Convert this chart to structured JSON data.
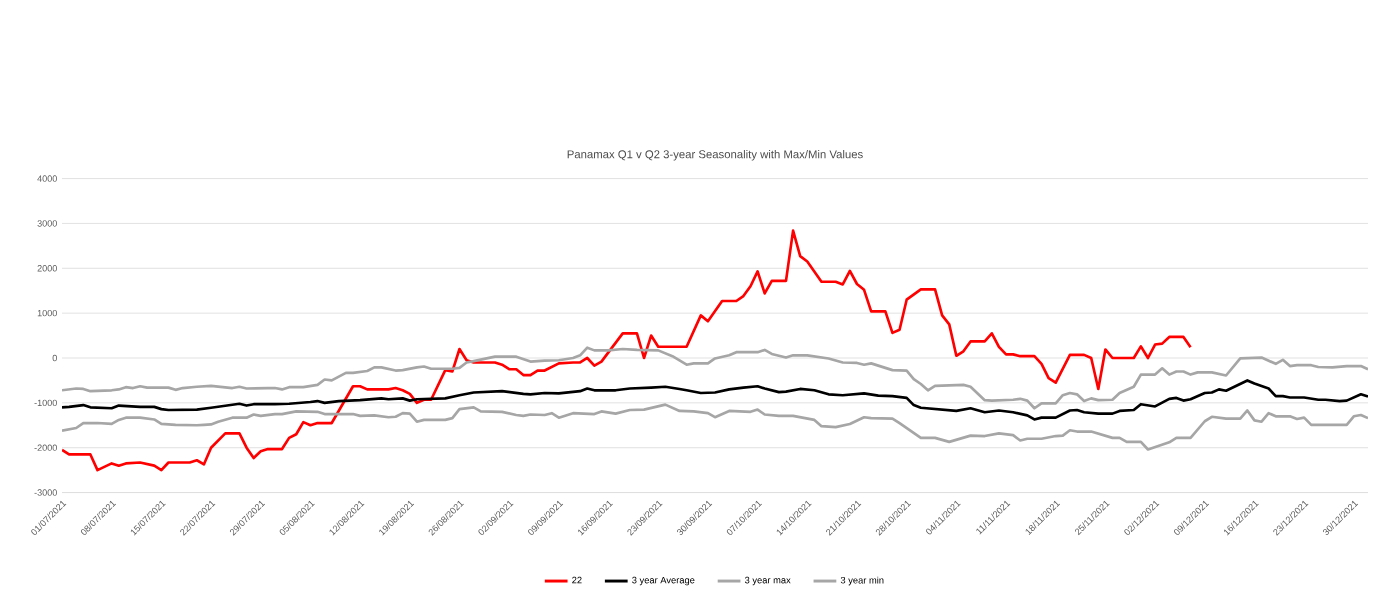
{
  "chart_data": {
    "type": "line",
    "title": "Panamax Q1 v Q2 3-year Seasonality with Max/Min Values",
    "xlim": [
      "2021-07-01",
      "2022-01-01"
    ],
    "ylim": [
      -3000,
      4000
    ],
    "yticks": [
      -3000,
      -2000,
      -1000,
      0,
      1000,
      2000,
      3000,
      4000
    ],
    "xticks": [
      {
        "value": "2021-07-01",
        "label": "01/07/2021"
      },
      {
        "value": "2021-07-08",
        "label": "08/07/2021"
      },
      {
        "value": "2021-07-15",
        "label": "15/07/2021"
      },
      {
        "value": "2021-07-22",
        "label": "22/07/2021"
      },
      {
        "value": "2021-07-29",
        "label": "29/07/2021"
      },
      {
        "value": "2021-08-05",
        "label": "05/08/2021"
      },
      {
        "value": "2021-08-12",
        "label": "12/08/2021"
      },
      {
        "value": "2021-08-19",
        "label": "19/08/2021"
      },
      {
        "value": "2021-08-26",
        "label": "26/08/2021"
      },
      {
        "value": "2021-09-02",
        "label": "02/09/2021"
      },
      {
        "value": "2021-09-09",
        "label": "09/09/2021"
      },
      {
        "value": "2021-09-16",
        "label": "16/09/2021"
      },
      {
        "value": "2021-09-23",
        "label": "23/09/2021"
      },
      {
        "value": "2021-09-30",
        "label": "30/09/2021"
      },
      {
        "value": "2021-10-07",
        "label": "07/10/2021"
      },
      {
        "value": "2021-10-14",
        "label": "14/10/2021"
      },
      {
        "value": "2021-10-21",
        "label": "21/10/2021"
      },
      {
        "value": "2021-10-28",
        "label": "28/10/2021"
      },
      {
        "value": "2021-11-04",
        "label": "04/11/2021"
      },
      {
        "value": "2021-11-11",
        "label": "11/11/2021"
      },
      {
        "value": "2021-11-18",
        "label": "18/11/2021"
      },
      {
        "value": "2021-11-25",
        "label": "25/11/2021"
      },
      {
        "value": "2021-12-02",
        "label": "02/12/2021"
      },
      {
        "value": "2021-12-09",
        "label": "09/12/2021"
      },
      {
        "value": "2021-12-16",
        "label": "16/12/2021"
      },
      {
        "value": "2021-12-23",
        "label": "23/12/2021"
      },
      {
        "value": "2021-12-30",
        "label": "30/12/2021"
      }
    ],
    "grid": "y",
    "legend": "bottom",
    "series": [
      {
        "name": "22",
        "color": "#ff0000",
        "x": [
          "2021-07-01",
          "2021-07-02",
          "2021-07-05",
          "2021-07-06",
          "2021-07-08",
          "2021-07-09",
          "2021-07-10",
          "2021-07-12",
          "2021-07-14",
          "2021-07-15",
          "2021-07-16",
          "2021-07-19",
          "2021-07-20",
          "2021-07-21",
          "2021-07-22",
          "2021-07-24",
          "2021-07-26",
          "2021-07-27",
          "2021-07-28",
          "2021-07-29",
          "2021-07-30",
          "2021-08-01",
          "2021-08-02",
          "2021-08-03",
          "2021-08-04",
          "2021-08-05",
          "2021-08-06",
          "2021-08-08",
          "2021-08-11",
          "2021-08-12",
          "2021-08-13",
          "2021-08-16",
          "2021-08-17",
          "2021-08-18",
          "2021-08-19",
          "2021-08-20",
          "2021-08-21",
          "2021-08-22",
          "2021-08-24",
          "2021-08-25",
          "2021-08-26",
          "2021-08-27",
          "2021-08-28",
          "2021-08-31",
          "2021-09-01",
          "2021-09-02",
          "2021-09-03",
          "2021-09-04",
          "2021-09-05",
          "2021-09-06",
          "2021-09-07",
          "2021-09-09",
          "2021-09-11",
          "2021-09-12",
          "2021-09-13",
          "2021-09-14",
          "2021-09-15",
          "2021-09-18",
          "2021-09-20",
          "2021-09-21",
          "2021-09-22",
          "2021-09-23",
          "2021-09-24",
          "2021-09-27",
          "2021-09-29",
          "2021-09-30",
          "2021-10-02",
          "2021-10-04",
          "2021-10-05",
          "2021-10-06",
          "2021-10-07",
          "2021-10-08",
          "2021-10-09",
          "2021-10-11",
          "2021-10-12",
          "2021-10-13",
          "2021-10-14",
          "2021-10-16",
          "2021-10-18",
          "2021-10-19",
          "2021-10-20",
          "2021-10-21",
          "2021-10-22",
          "2021-10-23",
          "2021-10-25",
          "2021-10-26",
          "2021-10-27",
          "2021-10-28",
          "2021-10-30",
          "2021-11-01",
          "2021-11-02",
          "2021-11-03",
          "2021-11-04",
          "2021-11-05",
          "2021-11-06",
          "2021-11-08",
          "2021-11-09",
          "2021-11-10",
          "2021-11-11",
          "2021-11-12",
          "2021-11-13",
          "2021-11-15",
          "2021-11-16",
          "2021-11-17",
          "2021-11-18",
          "2021-11-20",
          "2021-11-22",
          "2021-11-23",
          "2021-11-24",
          "2021-11-25",
          "2021-11-26",
          "2021-11-29",
          "2021-11-30",
          "2021-12-01",
          "2021-12-02",
          "2021-12-03",
          "2021-12-04",
          "2021-12-06",
          "2021-12-07"
        ],
        "values": [
          -2050,
          -2150,
          -2150,
          -2500,
          -2350,
          -2400,
          -2350,
          -2330,
          -2400,
          -2500,
          -2330,
          -2330,
          -2280,
          -2370,
          -2000,
          -1680,
          -1680,
          -2000,
          -2230,
          -2080,
          -2030,
          -2030,
          -1780,
          -1700,
          -1430,
          -1500,
          -1450,
          -1450,
          -630,
          -630,
          -700,
          -700,
          -670,
          -720,
          -800,
          -1000,
          -930,
          -930,
          -270,
          -300,
          200,
          -50,
          -100,
          -100,
          -150,
          -250,
          -250,
          -380,
          -380,
          -280,
          -280,
          -120,
          -100,
          -100,
          0,
          -170,
          -80,
          550,
          550,
          0,
          500,
          250,
          250,
          250,
          950,
          820,
          1270,
          1270,
          1380,
          1600,
          1930,
          1440,
          1720,
          1720,
          2840,
          2270,
          2150,
          1700,
          1700,
          1640,
          1940,
          1650,
          1520,
          1040,
          1040,
          560,
          630,
          1300,
          1530,
          1530,
          950,
          750,
          50,
          150,
          370,
          370,
          550,
          250,
          80,
          80,
          40,
          40,
          -130,
          -450,
          -550,
          70,
          70,
          0,
          -690,
          190,
          0,
          0,
          260,
          0,
          300,
          320,
          470,
          470,
          240
        ]
      },
      {
        "name": "3 year Average",
        "color": "#000000",
        "x": [
          "2021-07-01",
          "2021-07-02",
          "2021-07-04",
          "2021-07-05",
          "2021-07-08",
          "2021-07-09",
          "2021-07-12",
          "2021-07-14",
          "2021-07-15",
          "2021-07-16",
          "2021-07-20",
          "2021-07-22",
          "2021-07-26",
          "2021-07-27",
          "2021-07-28",
          "2021-07-31",
          "2021-08-02",
          "2021-08-05",
          "2021-08-06",
          "2021-08-07",
          "2021-08-09",
          "2021-08-12",
          "2021-08-15",
          "2021-08-16",
          "2021-08-18",
          "2021-08-19",
          "2021-08-20",
          "2021-08-24",
          "2021-08-26",
          "2021-08-28",
          "2021-09-01",
          "2021-09-04",
          "2021-09-05",
          "2021-09-07",
          "2021-09-09",
          "2021-09-12",
          "2021-09-13",
          "2021-09-14",
          "2021-09-17",
          "2021-09-19",
          "2021-09-22",
          "2021-09-24",
          "2021-09-26",
          "2021-09-27",
          "2021-09-29",
          "2021-10-01",
          "2021-10-03",
          "2021-10-05",
          "2021-10-07",
          "2021-10-08",
          "2021-10-10",
          "2021-10-11",
          "2021-10-13",
          "2021-10-15",
          "2021-10-17",
          "2021-10-19",
          "2021-10-22",
          "2021-10-24",
          "2021-10-26",
          "2021-10-28",
          "2021-10-29",
          "2021-10-30",
          "2021-11-04",
          "2021-11-06",
          "2021-11-08",
          "2021-11-10",
          "2021-11-12",
          "2021-11-14",
          "2021-11-15",
          "2021-11-16",
          "2021-11-18",
          "2021-11-20",
          "2021-11-21",
          "2021-11-22",
          "2021-11-24",
          "2021-11-26",
          "2021-11-27",
          "2021-11-29",
          "2021-11-30",
          "2021-12-02",
          "2021-12-04",
          "2021-12-05",
          "2021-12-06",
          "2021-12-07",
          "2021-12-09",
          "2021-12-10",
          "2021-12-11",
          "2021-12-12",
          "2021-12-15",
          "2021-12-16",
          "2021-12-18",
          "2021-12-19",
          "2021-12-20",
          "2021-12-21",
          "2021-12-23",
          "2021-12-25",
          "2021-12-26",
          "2021-12-28",
          "2021-12-29",
          "2021-12-31",
          "2022-01-01"
        ],
        "values": [
          -1100,
          -1090,
          -1050,
          -1100,
          -1120,
          -1060,
          -1090,
          -1090,
          -1140,
          -1160,
          -1150,
          -1110,
          -1020,
          -1060,
          -1030,
          -1030,
          -1020,
          -980,
          -960,
          -1000,
          -960,
          -940,
          -900,
          -920,
          -900,
          -950,
          -920,
          -900,
          -830,
          -770,
          -740,
          -800,
          -810,
          -780,
          -790,
          -740,
          -680,
          -720,
          -720,
          -680,
          -660,
          -640,
          -690,
          -720,
          -780,
          -770,
          -700,
          -660,
          -630,
          -680,
          -760,
          -750,
          -690,
          -720,
          -810,
          -830,
          -790,
          -840,
          -850,
          -890,
          -1050,
          -1110,
          -1180,
          -1120,
          -1210,
          -1170,
          -1210,
          -1280,
          -1370,
          -1330,
          -1330,
          -1170,
          -1160,
          -1210,
          -1240,
          -1240,
          -1180,
          -1160,
          -1030,
          -1080,
          -910,
          -890,
          -950,
          -920,
          -780,
          -770,
          -700,
          -730,
          -500,
          -570,
          -680,
          -850,
          -850,
          -880,
          -880,
          -930,
          -930,
          -960,
          -950,
          -810,
          -860
        ]
      },
      {
        "name": "3 year max",
        "color": "#a6a6a6",
        "x": [
          "2021-07-01",
          "2021-07-03",
          "2021-07-04",
          "2021-07-05",
          "2021-07-08",
          "2021-07-09",
          "2021-07-10",
          "2021-07-11",
          "2021-07-12",
          "2021-07-13",
          "2021-07-16",
          "2021-07-17",
          "2021-07-18",
          "2021-07-20",
          "2021-07-22",
          "2021-07-25",
          "2021-07-26",
          "2021-07-27",
          "2021-07-30",
          "2021-07-31",
          "2021-08-01",
          "2021-08-02",
          "2021-08-04",
          "2021-08-06",
          "2021-08-07",
          "2021-08-08",
          "2021-08-10",
          "2021-08-11",
          "2021-08-13",
          "2021-08-14",
          "2021-08-15",
          "2021-08-17",
          "2021-08-18",
          "2021-08-20",
          "2021-08-21",
          "2021-08-22",
          "2021-08-25",
          "2021-08-26",
          "2021-08-27",
          "2021-08-28",
          "2021-08-31",
          "2021-09-03",
          "2021-09-05",
          "2021-09-07",
          "2021-09-09",
          "2021-09-11",
          "2021-09-12",
          "2021-09-13",
          "2021-09-14",
          "2021-09-16",
          "2021-09-18",
          "2021-09-20",
          "2021-09-23",
          "2021-09-25",
          "2021-09-27",
          "2021-09-28",
          "2021-09-30",
          "2021-10-01",
          "2021-10-03",
          "2021-10-04",
          "2021-10-07",
          "2021-10-08",
          "2021-10-09",
          "2021-10-11",
          "2021-10-12",
          "2021-10-14",
          "2021-10-17",
          "2021-10-19",
          "2021-10-21",
          "2021-10-22",
          "2021-10-23",
          "2021-10-24",
          "2021-10-25",
          "2021-10-26",
          "2021-10-28",
          "2021-10-29",
          "2021-10-30",
          "2021-10-31",
          "2021-11-01",
          "2021-11-05",
          "2021-11-06",
          "2021-11-08",
          "2021-11-09",
          "2021-11-12",
          "2021-11-13",
          "2021-11-14",
          "2021-11-15",
          "2021-11-16",
          "2021-11-18",
          "2021-11-19",
          "2021-11-20",
          "2021-11-21",
          "2021-11-22",
          "2021-11-23",
          "2021-11-24",
          "2021-11-26",
          "2021-11-27",
          "2021-11-29",
          "2021-11-30",
          "2021-12-02",
          "2021-12-03",
          "2021-12-04",
          "2021-12-05",
          "2021-12-06",
          "2021-12-07",
          "2021-12-08",
          "2021-12-10",
          "2021-12-12",
          "2021-12-14",
          "2021-12-17",
          "2021-12-19",
          "2021-12-20",
          "2021-12-21",
          "2021-12-22",
          "2021-12-24",
          "2021-12-25",
          "2021-12-27",
          "2021-12-29",
          "2021-12-31",
          "2022-01-01"
        ],
        "values": [
          -720,
          -680,
          -690,
          -740,
          -720,
          -700,
          -650,
          -670,
          -630,
          -660,
          -660,
          -710,
          -670,
          -640,
          -620,
          -670,
          -640,
          -680,
          -670,
          -670,
          -700,
          -650,
          -650,
          -600,
          -480,
          -500,
          -330,
          -330,
          -290,
          -210,
          -210,
          -280,
          -270,
          -210,
          -190,
          -240,
          -240,
          -220,
          -100,
          -70,
          30,
          30,
          -80,
          -60,
          -50,
          0,
          60,
          230,
          170,
          170,
          200,
          180,
          170,
          40,
          -150,
          -120,
          -120,
          -10,
          60,
          130,
          130,
          180,
          90,
          10,
          60,
          60,
          -10,
          -100,
          -110,
          -150,
          -120,
          -170,
          -220,
          -270,
          -280,
          -470,
          -580,
          -720,
          -620,
          -600,
          -640,
          -940,
          -950,
          -930,
          -910,
          -950,
          -1120,
          -1010,
          -1010,
          -830,
          -780,
          -810,
          -960,
          -900,
          -940,
          -930,
          -780,
          -640,
          -370,
          -370,
          -230,
          -370,
          -300,
          -300,
          -370,
          -320,
          -320,
          -390,
          -10,
          10,
          -130,
          -40,
          -180,
          -160,
          -160,
          -200,
          -210,
          -180,
          -180,
          -250
        ]
      },
      {
        "name": "3 year min",
        "color": "#a6a6a6",
        "x": [
          "2021-07-01",
          "2021-07-03",
          "2021-07-04",
          "2021-07-06",
          "2021-07-08",
          "2021-07-09",
          "2021-07-10",
          "2021-07-12",
          "2021-07-14",
          "2021-07-15",
          "2021-07-17",
          "2021-07-20",
          "2021-07-21",
          "2021-07-22",
          "2021-07-23",
          "2021-07-25",
          "2021-07-27",
          "2021-07-28",
          "2021-07-29",
          "2021-07-31",
          "2021-08-01",
          "2021-08-03",
          "2021-08-06",
          "2021-08-07",
          "2021-08-11",
          "2021-08-12",
          "2021-08-14",
          "2021-08-16",
          "2021-08-17",
          "2021-08-18",
          "2021-08-19",
          "2021-08-20",
          "2021-08-21",
          "2021-08-24",
          "2021-08-25",
          "2021-08-26",
          "2021-08-28",
          "2021-08-29",
          "2021-09-01",
          "2021-09-03",
          "2021-09-04",
          "2021-09-05",
          "2021-09-07",
          "2021-09-08",
          "2021-09-09",
          "2021-09-11",
          "2021-09-14",
          "2021-09-15",
          "2021-09-17",
          "2021-09-19",
          "2021-09-21",
          "2021-09-24",
          "2021-09-26",
          "2021-09-28",
          "2021-09-30",
          "2021-10-01",
          "2021-10-03",
          "2021-10-06",
          "2021-10-07",
          "2021-10-08",
          "2021-10-10",
          "2021-10-12",
          "2021-10-15",
          "2021-10-16",
          "2021-10-18",
          "2021-10-20",
          "2021-10-22",
          "2021-10-23",
          "2021-10-26",
          "2021-10-27",
          "2021-10-30",
          "2021-11-01",
          "2021-11-03",
          "2021-11-06",
          "2021-11-08",
          "2021-11-10",
          "2021-11-12",
          "2021-11-13",
          "2021-11-14",
          "2021-11-16",
          "2021-11-18",
          "2021-11-19",
          "2021-11-20",
          "2021-11-21",
          "2021-11-23",
          "2021-11-26",
          "2021-11-27",
          "2021-11-28",
          "2021-11-30",
          "2021-12-01",
          "2021-12-04",
          "2021-12-05",
          "2021-12-07",
          "2021-12-09",
          "2021-12-10",
          "2021-12-12",
          "2021-12-14",
          "2021-12-15",
          "2021-12-16",
          "2021-12-17",
          "2021-12-18",
          "2021-12-19",
          "2021-12-21",
          "2021-12-22",
          "2021-12-23",
          "2021-12-24",
          "2021-12-29",
          "2021-12-30",
          "2021-12-31",
          "2022-01-01"
        ],
        "values": [
          -1620,
          -1560,
          -1450,
          -1450,
          -1470,
          -1380,
          -1330,
          -1330,
          -1370,
          -1470,
          -1490,
          -1500,
          -1490,
          -1480,
          -1420,
          -1330,
          -1330,
          -1260,
          -1290,
          -1250,
          -1250,
          -1190,
          -1200,
          -1250,
          -1250,
          -1290,
          -1280,
          -1320,
          -1310,
          -1230,
          -1240,
          -1420,
          -1380,
          -1380,
          -1340,
          -1140,
          -1100,
          -1190,
          -1200,
          -1270,
          -1290,
          -1260,
          -1270,
          -1230,
          -1330,
          -1230,
          -1250,
          -1190,
          -1240,
          -1160,
          -1150,
          -1040,
          -1180,
          -1190,
          -1230,
          -1320,
          -1180,
          -1200,
          -1150,
          -1260,
          -1290,
          -1290,
          -1380,
          -1520,
          -1540,
          -1470,
          -1320,
          -1340,
          -1350,
          -1450,
          -1780,
          -1780,
          -1870,
          -1730,
          -1740,
          -1680,
          -1720,
          -1840,
          -1800,
          -1800,
          -1740,
          -1730,
          -1610,
          -1640,
          -1640,
          -1780,
          -1780,
          -1870,
          -1870,
          -2040,
          -1880,
          -1780,
          -1780,
          -1410,
          -1310,
          -1350,
          -1350,
          -1170,
          -1390,
          -1420,
          -1230,
          -1300,
          -1300,
          -1360,
          -1330,
          -1490,
          -1490,
          -1300,
          -1270,
          -1340
        ]
      }
    ]
  }
}
